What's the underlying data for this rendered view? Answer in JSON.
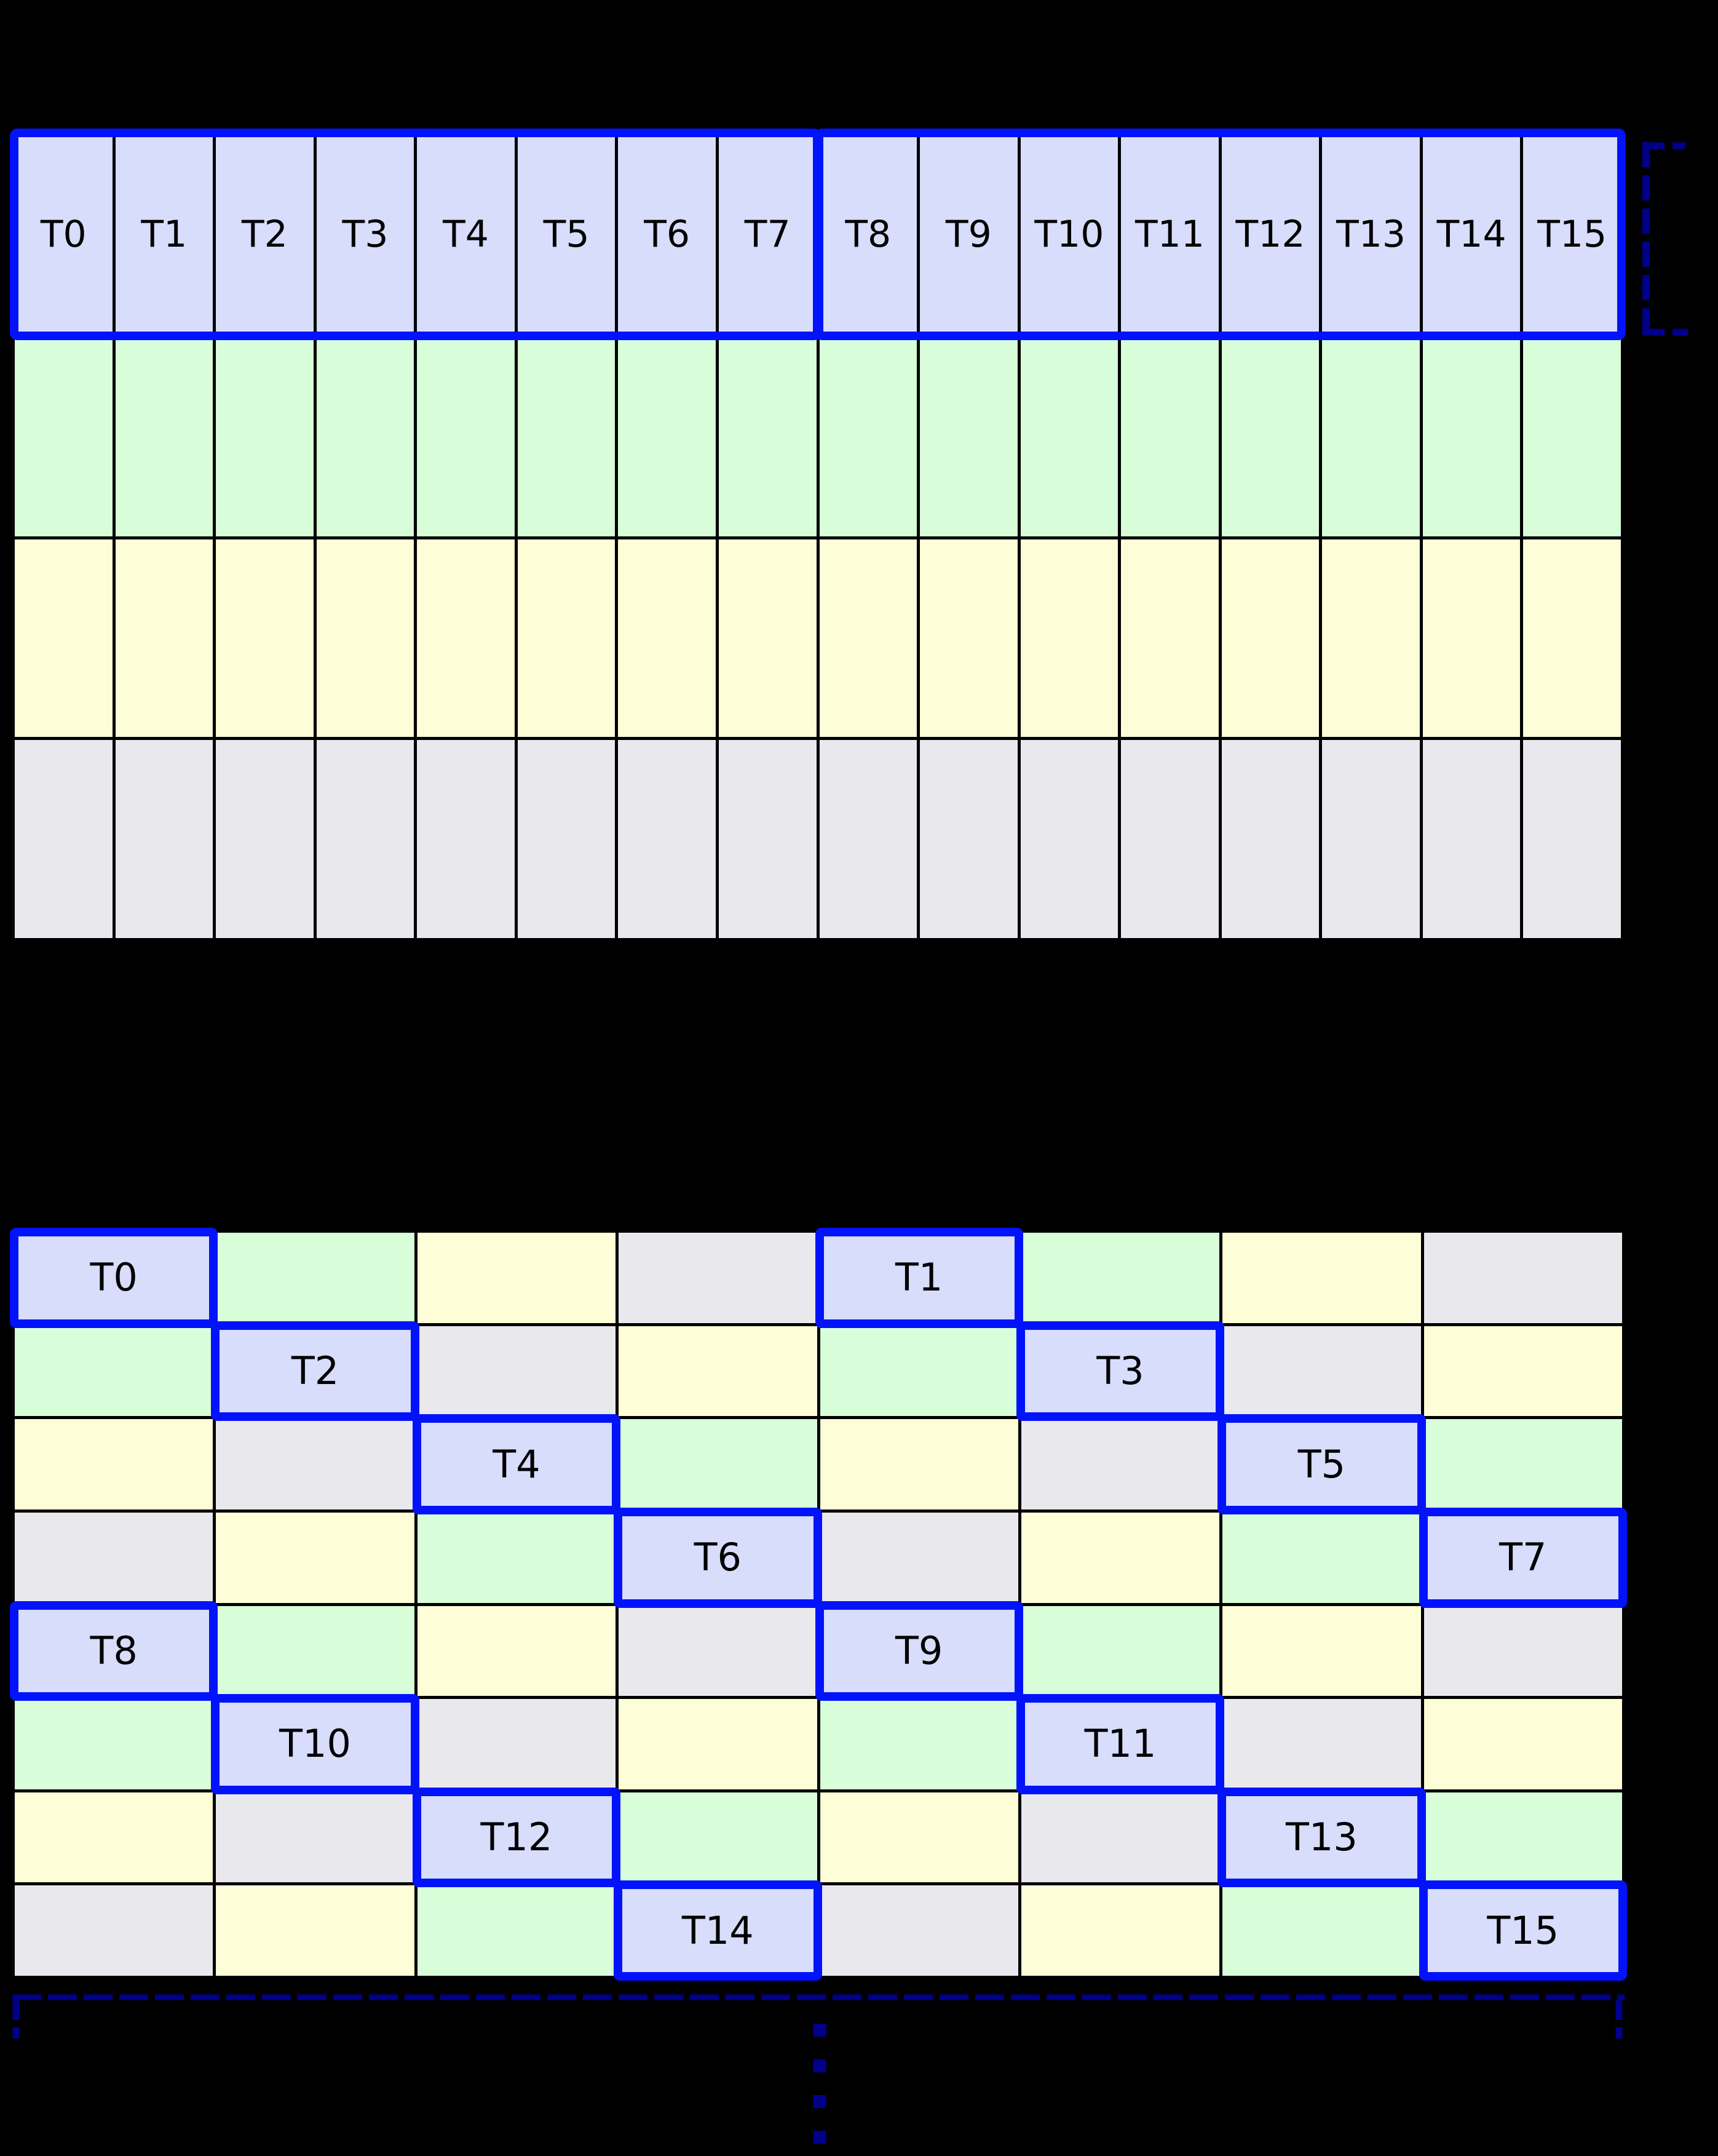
{
  "page": {
    "background": "#000000"
  },
  "palette": {
    "thread_fill": "#d7ddfb",
    "green_fill": "#d7fdd9",
    "yellow_fill": "#fdfdd7",
    "gray_fill": "#e9e8ed",
    "highlight_border": "#0213fb",
    "annotation_navy": "#00008b",
    "grid_line": "#000000",
    "label_color": "#000000"
  },
  "top_grid": {
    "columns": 16,
    "header": {
      "labels": [
        "T0",
        "T1",
        "T2",
        "T3",
        "T4",
        "T5",
        "T6",
        "T7",
        "T8",
        "T9",
        "T10",
        "T11",
        "T12",
        "T13",
        "T14",
        "T15"
      ],
      "fill": "thread_fill",
      "groups": [
        {
          "start": 0,
          "end": 7
        },
        {
          "start": 8,
          "end": 15
        }
      ]
    },
    "body_rows": [
      {
        "fill": "green_fill"
      },
      {
        "fill": "yellow_fill"
      },
      {
        "fill": "gray_fill"
      }
    ]
  },
  "bottom_grid": {
    "rows": 8,
    "columns": 8,
    "cell_colors": [
      [
        "thread_fill",
        "green_fill",
        "yellow_fill",
        "gray_fill",
        "thread_fill",
        "green_fill",
        "yellow_fill",
        "gray_fill"
      ],
      [
        "green_fill",
        "thread_fill",
        "gray_fill",
        "yellow_fill",
        "green_fill",
        "thread_fill",
        "gray_fill",
        "yellow_fill"
      ],
      [
        "yellow_fill",
        "gray_fill",
        "thread_fill",
        "green_fill",
        "yellow_fill",
        "gray_fill",
        "thread_fill",
        "green_fill"
      ],
      [
        "gray_fill",
        "yellow_fill",
        "green_fill",
        "thread_fill",
        "gray_fill",
        "yellow_fill",
        "green_fill",
        "thread_fill"
      ],
      [
        "thread_fill",
        "green_fill",
        "yellow_fill",
        "gray_fill",
        "thread_fill",
        "green_fill",
        "yellow_fill",
        "gray_fill"
      ],
      [
        "green_fill",
        "thread_fill",
        "gray_fill",
        "yellow_fill",
        "green_fill",
        "thread_fill",
        "gray_fill",
        "yellow_fill"
      ],
      [
        "yellow_fill",
        "gray_fill",
        "thread_fill",
        "green_fill",
        "yellow_fill",
        "gray_fill",
        "thread_fill",
        "green_fill"
      ],
      [
        "gray_fill",
        "yellow_fill",
        "green_fill",
        "thread_fill",
        "gray_fill",
        "yellow_fill",
        "green_fill",
        "thread_fill"
      ]
    ],
    "thread_cells": [
      {
        "label": "T0",
        "row": 0,
        "col": 0
      },
      {
        "label": "T1",
        "row": 0,
        "col": 4
      },
      {
        "label": "T2",
        "row": 1,
        "col": 1
      },
      {
        "label": "T3",
        "row": 1,
        "col": 5
      },
      {
        "label": "T4",
        "row": 2,
        "col": 2
      },
      {
        "label": "T5",
        "row": 2,
        "col": 6
      },
      {
        "label": "T6",
        "row": 3,
        "col": 3
      },
      {
        "label": "T7",
        "row": 3,
        "col": 7
      },
      {
        "label": "T8",
        "row": 4,
        "col": 0
      },
      {
        "label": "T9",
        "row": 4,
        "col": 4
      },
      {
        "label": "T10",
        "row": 5,
        "col": 1
      },
      {
        "label": "T11",
        "row": 5,
        "col": 5
      },
      {
        "label": "T12",
        "row": 6,
        "col": 2
      },
      {
        "label": "T13",
        "row": 6,
        "col": 6
      },
      {
        "label": "T14",
        "row": 7,
        "col": 3
      },
      {
        "label": "T15",
        "row": 7,
        "col": 7
      }
    ]
  },
  "annotations": {
    "header_row_bracket": {
      "side": "right-of-header-row",
      "style": "dashed"
    },
    "continuation_bracket": {
      "side": "below-bottom-grid",
      "style": "dashed"
    },
    "vertical_ellipsis": {
      "dots": 4
    }
  }
}
